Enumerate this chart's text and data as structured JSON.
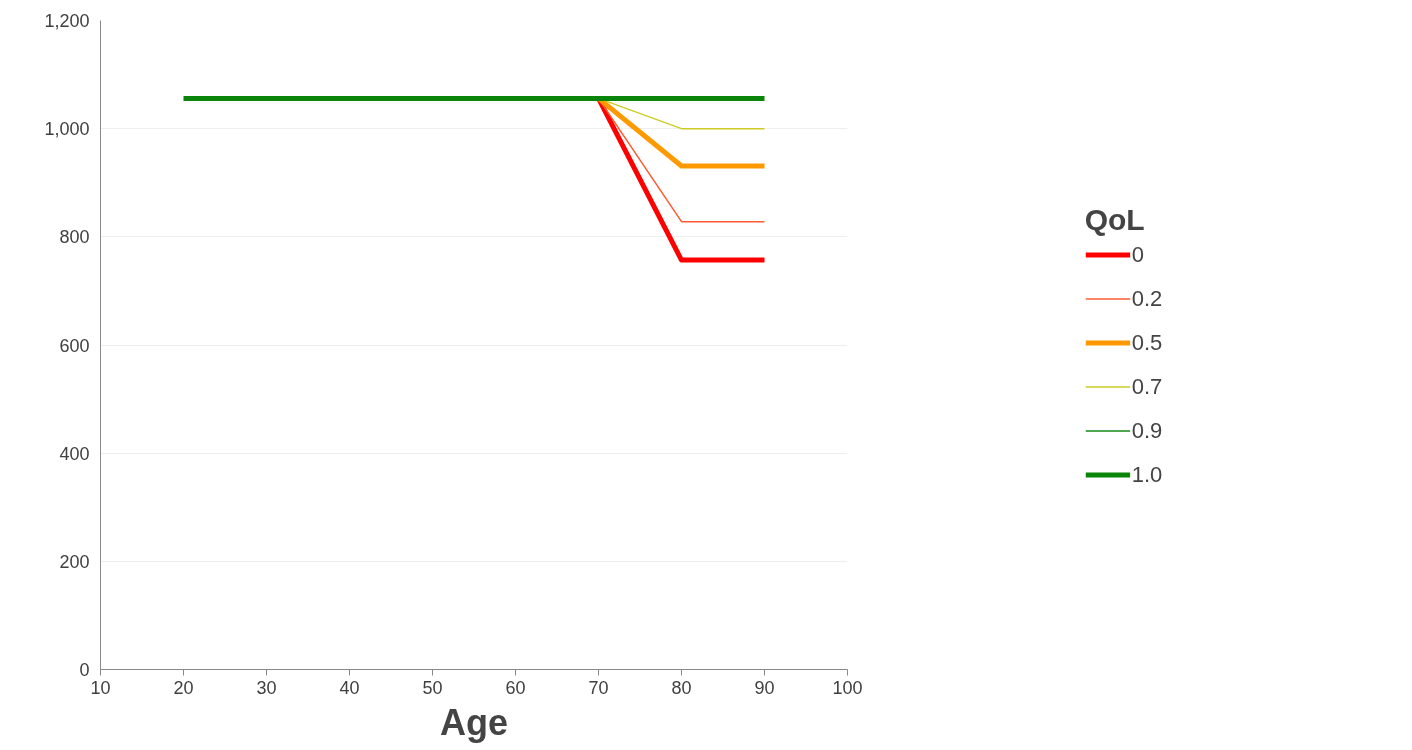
{
  "chart_data": {
    "type": "line",
    "xlabel": "Age",
    "legend_title": "QoL",
    "xlim": [
      10,
      100
    ],
    "xticks": [
      10,
      20,
      30,
      40,
      50,
      60,
      70,
      80,
      90,
      100
    ],
    "ylim": [
      0,
      1200
    ],
    "yticks": [
      0,
      {
        "value": 200,
        "label": "200"
      },
      {
        "value": 400,
        "label": "400"
      },
      {
        "value": 600,
        "label": "600"
      },
      {
        "value": 800,
        "label": "800"
      },
      {
        "value": 1000,
        "label": "1,000"
      },
      {
        "value": 1200,
        "label": "1,200"
      }
    ],
    "grid": "y",
    "legend": "right",
    "marker": "none",
    "line_style": "solid",
    "series": [
      {
        "name": "0",
        "color": "#ff0000",
        "x": [
          70,
          80,
          90
        ],
        "values": [
          1056,
          757,
          757
        ]
      },
      {
        "name": "0.2",
        "color": "#ff5a32",
        "x": [
          70,
          80,
          90
        ],
        "values": [
          1056,
          828,
          828
        ]
      },
      {
        "name": "0.5",
        "color": "#ff9900",
        "x": [
          70,
          80,
          90
        ],
        "values": [
          1056,
          931,
          931
        ]
      },
      {
        "name": "0.7",
        "color": "#cccc22",
        "x": [
          70,
          80,
          90
        ],
        "values": [
          1056,
          1000,
          1000
        ]
      },
      {
        "name": "0.9",
        "color": "#138a13"
      },
      {
        "name": "1.0",
        "color": "#0a850a",
        "x": [
          20,
          70,
          80,
          90
        ],
        "values": [
          1056,
          1056,
          1056,
          1056
        ]
      }
    ]
  }
}
